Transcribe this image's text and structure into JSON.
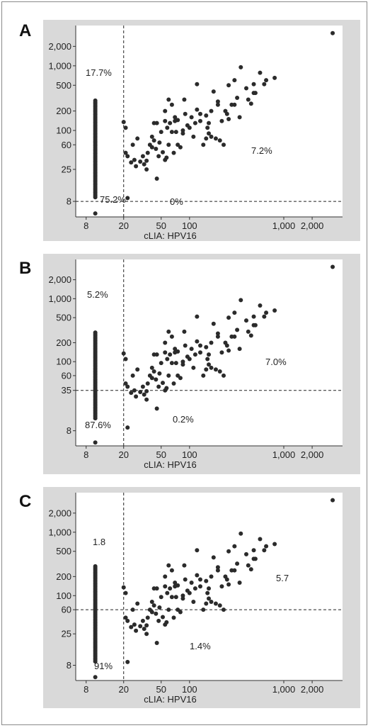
{
  "chart_data": [
    {
      "type": "scatter",
      "panel_letter": "A",
      "xlabel": "cLIA: HPV16",
      "ylabel": "",
      "x_scale": "log",
      "y_scale": "log",
      "xlim": [
        6.2,
        4200
      ],
      "ylim": [
        4.6,
        4200
      ],
      "x_ticks": [
        8,
        20,
        50,
        100,
        1000,
        2000
      ],
      "x_tick_labels": [
        "8",
        "20",
        "50",
        "100",
        "1,000",
        "2,000"
      ],
      "y_ticks": [
        8,
        25,
        60,
        100,
        200,
        500,
        1000,
        2000
      ],
      "y_tick_labels": [
        "8",
        "25",
        "60",
        "100",
        "200",
        "500",
        "1,000",
        "2,000"
      ],
      "x_cutoff": 20,
      "y_cutoff": 8,
      "annotations": [
        "17.7%",
        "75.2%",
        "0%",
        "7.2%"
      ],
      "negative_column_x": 10,
      "negative_column_y_range": [
        9,
        290
      ],
      "negative_column_outlier_y": 5.2
    },
    {
      "type": "scatter",
      "panel_letter": "B",
      "xlabel": "cLIA: HPV16",
      "ylabel": "",
      "x_scale": "log",
      "y_scale": "log",
      "xlim": [
        6.2,
        4200
      ],
      "ylim": [
        4.6,
        4200
      ],
      "x_ticks": [
        8,
        20,
        50,
        100,
        1000,
        2000
      ],
      "x_tick_labels": [
        "8",
        "20",
        "50",
        "100",
        "1,000",
        "2,000"
      ],
      "y_ticks": [
        8,
        35,
        60,
        100,
        200,
        500,
        1000,
        2000
      ],
      "y_tick_labels": [
        "8",
        "35",
        "60",
        "100",
        "200",
        "500",
        "1,000",
        "2,000"
      ],
      "x_cutoff": 20,
      "y_cutoff": 35,
      "annotations": [
        "5.2%",
        "87.6%",
        "0.2%",
        "7.0%"
      ],
      "negative_column_x": 10,
      "negative_column_y_range": [
        12,
        290
      ],
      "negative_column_outlier_y": 5.2
    },
    {
      "type": "scatter",
      "panel_letter": "C",
      "xlabel": "cLIA: HPV16",
      "ylabel": "",
      "x_scale": "log",
      "y_scale": "log",
      "xlim": [
        6.2,
        4200
      ],
      "ylim": [
        4.6,
        4200
      ],
      "x_ticks": [
        8,
        20,
        50,
        100,
        1000,
        2000
      ],
      "x_tick_labels": [
        "8",
        "20",
        "50",
        "100",
        "1,000",
        "2,000"
      ],
      "y_ticks": [
        8,
        25,
        60,
        100,
        200,
        500,
        1000,
        2000
      ],
      "y_tick_labels": [
        "8",
        "25",
        "60",
        "100",
        "200",
        "500",
        "1,000",
        "2,000"
      ],
      "x_cutoff": 20,
      "y_cutoff": 60,
      "annotations": [
        "1.8",
        "91%",
        "1.4%",
        "5.7"
      ],
      "negative_column_x": 10,
      "negative_column_y_range": [
        9,
        290
      ],
      "negative_column_outlier_y": 5.2
    }
  ],
  "points": [
    [
      3300,
      3200
    ],
    [
      800,
      650
    ],
    [
      560,
      780
    ],
    [
      620,
      520
    ],
    [
      480,
      380
    ],
    [
      350,
      950
    ],
    [
      300,
      600
    ],
    [
      260,
      500
    ],
    [
      180,
      400
    ],
    [
      200,
      280
    ],
    [
      240,
      200
    ],
    [
      120,
      520
    ],
    [
      60,
      300
    ],
    [
      65,
      250
    ],
    [
      55,
      200
    ],
    [
      70,
      160
    ],
    [
      75,
      145
    ],
    [
      55,
      140
    ],
    [
      90,
      180
    ],
    [
      130,
      140
    ],
    [
      155,
      110
    ],
    [
      100,
      110
    ],
    [
      85,
      100
    ],
    [
      65,
      95
    ],
    [
      60,
      60
    ],
    [
      48,
      65
    ],
    [
      44,
      52
    ],
    [
      40,
      55
    ],
    [
      36,
      45
    ],
    [
      32,
      40
    ],
    [
      30,
      33
    ],
    [
      27,
      28
    ],
    [
      24,
      32
    ],
    [
      22,
      40
    ],
    [
      21,
      45
    ],
    [
      20,
      135
    ],
    [
      21,
      110
    ],
    [
      26,
      35
    ],
    [
      33,
      30
    ],
    [
      35,
      25
    ],
    [
      45,
      18
    ],
    [
      55,
      35
    ],
    [
      80,
      55
    ],
    [
      110,
      80
    ],
    [
      140,
      60
    ],
    [
      150,
      75
    ],
    [
      160,
      90
    ],
    [
      170,
      80
    ],
    [
      190,
      75
    ],
    [
      210,
      70
    ],
    [
      230,
      60
    ],
    [
      250,
      180
    ],
    [
      280,
      250
    ],
    [
      320,
      320
    ],
    [
      400,
      450
    ],
    [
      450,
      260
    ],
    [
      500,
      380
    ],
    [
      340,
      160
    ],
    [
      150,
      170
    ],
    [
      130,
      180
    ],
    [
      170,
      200
    ],
    [
      200,
      250
    ],
    [
      220,
      140
    ],
    [
      45,
      130
    ],
    [
      40,
      80
    ],
    [
      38,
      60
    ],
    [
      50,
      95
    ],
    [
      58,
      110
    ],
    [
      95,
      120
    ],
    [
      105,
      160
    ],
    [
      70,
      140
    ],
    [
      62,
      130
    ],
    [
      28,
      75
    ],
    [
      42,
      70
    ],
    [
      47,
      40
    ],
    [
      52,
      46
    ],
    [
      68,
      45
    ],
    [
      75,
      60
    ],
    [
      85,
      90
    ],
    [
      115,
      130
    ],
    [
      120,
      210
    ],
    [
      260,
      150
    ],
    [
      300,
      250
    ],
    [
      420,
      300
    ],
    [
      650,
      600
    ],
    [
      35,
      34
    ],
    [
      57,
      38
    ],
    [
      42,
      130
    ],
    [
      25,
      60
    ],
    [
      88,
      300
    ],
    [
      72,
      95
    ],
    [
      160,
      130
    ],
    [
      480,
      520
    ],
    [
      22,
      9
    ]
  ]
}
